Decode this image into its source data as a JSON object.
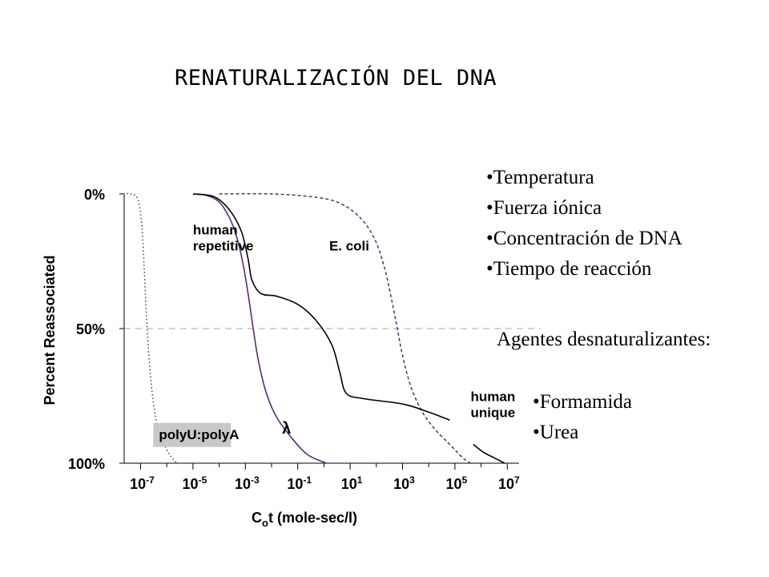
{
  "slide": {
    "title": "RENATURALIZACIÓN DEL DNA",
    "factors": [
      "Temperatura",
      "Fuerza iónica",
      "Concentración de DNA",
      "Tiempo de reacción"
    ],
    "agents_heading": "Agentes desnaturalizantes:",
    "agents": [
      "Formamida",
      "Urea"
    ]
  },
  "chart_data": {
    "type": "line",
    "xlabel": "Cot (mole-sec/l)",
    "ylabel": "Percent Reassociated",
    "x_scale": "log10",
    "xlim": [
      -8,
      7.5
    ],
    "ylim": [
      0,
      100
    ],
    "y_inverted": true,
    "xtick_exponents": [
      -7,
      -5,
      -3,
      -1,
      1,
      3,
      5,
      7
    ],
    "ytick_labels": [
      {
        "label": "0%",
        "value": 0
      },
      {
        "label": "50%",
        "value": 50
      },
      {
        "label": "100%",
        "value": 100
      }
    ],
    "reference_line": {
      "y": 50,
      "style": "dashed",
      "color": "#a6a6a6"
    },
    "series": [
      {
        "name": "polyU:polyA",
        "style": "dotted",
        "color": "#444444",
        "label_box": true,
        "label_at": [
          -6.3,
          91
        ],
        "points": [
          [
            -7.8,
            0
          ],
          [
            -7.4,
            0
          ],
          [
            -7.1,
            2
          ],
          [
            -6.95,
            12
          ],
          [
            -6.85,
            30
          ],
          [
            -6.75,
            50
          ],
          [
            -6.6,
            70
          ],
          [
            -6.4,
            84
          ],
          [
            -6.1,
            93
          ],
          [
            -5.8,
            98
          ],
          [
            -5.6,
            100
          ]
        ]
      },
      {
        "name": "λ",
        "style": "solid",
        "color": "#5b2a78",
        "label_at": [
          -1.6,
          89
        ],
        "points": [
          [
            -5.0,
            0
          ],
          [
            -4.5,
            0.5
          ],
          [
            -4.0,
            3
          ],
          [
            -3.6,
            9
          ],
          [
            -3.3,
            17
          ],
          [
            -3.05,
            28
          ],
          [
            -2.85,
            40
          ],
          [
            -2.7,
            50
          ],
          [
            -2.5,
            62
          ],
          [
            -2.2,
            74
          ],
          [
            -1.8,
            83
          ],
          [
            -1.2,
            91
          ],
          [
            -0.6,
            97
          ],
          [
            0.1,
            100
          ]
        ]
      },
      {
        "name": "E. coli",
        "style": "dashed",
        "color": "#5b2a78",
        "label_at": [
          0.2,
          21
        ],
        "points": [
          [
            -4.0,
            0
          ],
          [
            -2.0,
            0
          ],
          [
            -0.5,
            1
          ],
          [
            0.5,
            3
          ],
          [
            1.3,
            8
          ],
          [
            1.9,
            16
          ],
          [
            2.3,
            27
          ],
          [
            2.6,
            40
          ],
          [
            2.8,
            50
          ],
          [
            3.0,
            60
          ],
          [
            3.3,
            71
          ],
          [
            3.7,
            80
          ],
          [
            4.2,
            87
          ],
          [
            4.8,
            93
          ],
          [
            5.3,
            98
          ],
          [
            5.6,
            100
          ]
        ]
      },
      {
        "name": "human repetitive",
        "name_lines": [
          "human",
          "repetitive"
        ],
        "style": "solid",
        "color": "#000000",
        "label_at": [
          -5.0,
          15
        ],
        "points": [
          [
            -5.0,
            0
          ],
          [
            -4.2,
            1
          ],
          [
            -3.6,
            6
          ],
          [
            -3.15,
            14
          ],
          [
            -2.9,
            24
          ],
          [
            -2.75,
            32
          ],
          [
            -2.4,
            37
          ],
          [
            -1.8,
            38
          ],
          [
            -1.0,
            41
          ],
          [
            -0.3,
            47
          ],
          [
            0.3,
            56
          ],
          [
            0.6,
            66
          ],
          [
            0.85,
            74
          ],
          [
            1.5,
            76
          ],
          [
            3.0,
            78
          ],
          [
            4.0,
            81
          ],
          [
            4.8,
            84
          ]
        ]
      },
      {
        "name": "human unique",
        "name_lines": [
          "human",
          "unique"
        ],
        "style": "solid",
        "color": "#000000",
        "label_at": [
          5.6,
          77
        ],
        "points": [
          [
            5.7,
            93
          ],
          [
            6.1,
            96
          ],
          [
            6.5,
            98
          ],
          [
            6.9,
            100
          ]
        ]
      }
    ]
  }
}
